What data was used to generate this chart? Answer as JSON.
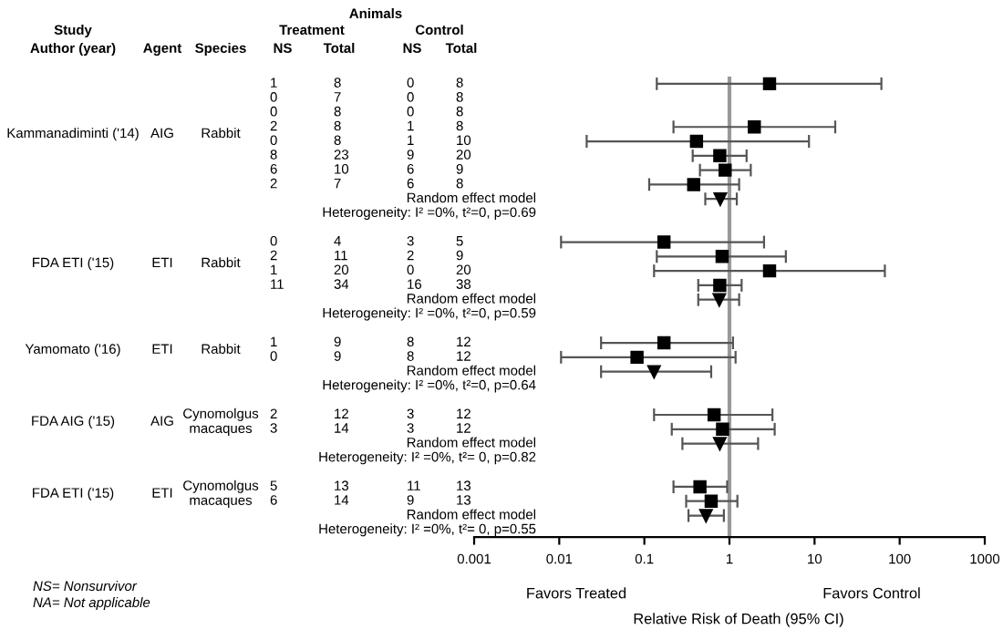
{
  "chart_data": {
    "type": "scatter",
    "orientation": "horizontal",
    "log": "x",
    "tick_labels": "x",
    "categories": [
      null,
      null,
      null,
      null,
      null,
      null,
      null,
      null,
      null,
      null,
      null,
      null,
      null,
      null,
      null,
      null,
      null,
      null,
      null,
      null,
      null,
      null,
      null,
      null,
      null,
      null,
      null,
      null,
      null,
      null,
      null,
      null
    ],
    "xlim": [
      0.001,
      1000
    ],
    "xticks": [
      {
        "value": 0.001,
        "label": "0.001"
      },
      {
        "value": 0.01,
        "label": "0.01"
      },
      {
        "value": 0.1,
        "label": "0.1"
      },
      1,
      10,
      100,
      1000
    ],
    "xlabel": "Relative Risk of Death (95% CI)",
    "ref_lines": [
      {
        "axis": "x",
        "value": 1,
        "color": "#999999"
      }
    ],
    "series": [
      {
        "marker": "square",
        "color": "#000000",
        "values": [
          2.96,
          null,
          null,
          1.96,
          0.41,
          0.77,
          0.89,
          0.38,
          null,
          null,
          null,
          0.17,
          0.82,
          2.96,
          0.77,
          null,
          null,
          null,
          0.17,
          0.082,
          null,
          null,
          null,
          0.66,
          0.83,
          null,
          null,
          null,
          0.45,
          0.61,
          null,
          null
        ],
        "errors": [
          [
            0.14,
            61
          ],
          null,
          null,
          [
            0.22,
            17.5
          ],
          [
            0.021,
            8.6
          ],
          [
            0.37,
            1.59
          ],
          [
            0.45,
            1.78
          ],
          [
            0.114,
            1.3
          ],
          null,
          null,
          null,
          [
            0.0105,
            2.55
          ],
          [
            0.14,
            4.6
          ],
          [
            0.13,
            67
          ],
          [
            0.43,
            1.39
          ],
          null,
          null,
          null,
          [
            0.031,
            1.1
          ],
          [
            0.0105,
            1.18
          ],
          null,
          null,
          null,
          [
            0.13,
            3.2
          ],
          [
            0.21,
            3.4
          ],
          null,
          null,
          null,
          [
            0.22,
            0.94
          ],
          [
            0.31,
            1.24
          ],
          null,
          null
        ]
      },
      {
        "marker": "triangle",
        "color": "#000000",
        "values": [
          null,
          null,
          null,
          null,
          null,
          null,
          null,
          null,
          0.78,
          null,
          null,
          null,
          null,
          null,
          null,
          0.76,
          null,
          null,
          null,
          null,
          0.13,
          null,
          null,
          null,
          null,
          0.77,
          null,
          null,
          null,
          null,
          0.53,
          null
        ],
        "errors": [
          null,
          null,
          null,
          null,
          null,
          null,
          null,
          null,
          [
            0.52,
            1.22
          ],
          null,
          null,
          null,
          null,
          null,
          null,
          [
            0.43,
            1.3
          ],
          null,
          null,
          null,
          null,
          [
            0.031,
            0.61
          ],
          null,
          null,
          null,
          null,
          [
            0.28,
            2.17
          ],
          null,
          null,
          null,
          null,
          [
            0.33,
            0.86
          ],
          null
        ]
      }
    ],
    "annotations": [
      "Animals",
      "Study",
      "Treatment",
      "Control",
      "Author (year)",
      "Agent",
      "Species",
      "NS",
      "Total",
      "NS",
      "Total",
      "Kammanadiminti ('14)",
      "AIG",
      "Rabbit",
      "1",
      "8",
      "0",
      "8",
      "0",
      "7",
      "0",
      "8",
      "0",
      "8",
      "0",
      "8",
      "2",
      "8",
      "1",
      "8",
      "0",
      "8",
      "1",
      "10",
      "8",
      "23",
      "9",
      "20",
      "6",
      "10",
      "6",
      "9",
      "2",
      "7",
      "6",
      "8",
      "Random effect model",
      "Heterogeneity: I² =0%, t²=0, p=0.69",
      "FDA ETI ('15)",
      "ETI",
      "Rabbit",
      "0",
      "4",
      "3",
      "5",
      "2",
      "11",
      "2",
      "9",
      "1",
      "20",
      "0",
      "20",
      "11",
      "34",
      "16",
      "38",
      "Random effect model",
      "Heterogeneity: I² =0%, t²=0, p=0.59",
      "Yamomato ('16)",
      "ETI",
      "Rabbit",
      "1",
      "9",
      "8",
      "12",
      "0",
      "9",
      "8",
      "12",
      "Random effect model",
      "Heterogeneity: I² =0%, t²=0, p=0.64",
      "FDA AIG ('15)",
      "AIG",
      "Cynomolgus\nmacaques",
      "2",
      "12",
      "3",
      "12",
      "3",
      "14",
      "3",
      "12",
      "Random effect model",
      "Heterogeneity: I² =0%, t²= 0, p=0.82",
      "FDA ETI ('15)",
      "ETI",
      "Cynomolgus\nmacaques",
      "5",
      "13",
      "11",
      "13",
      "6",
      "14",
      "9",
      "13",
      "Random effect model",
      "Heterogeneity: I² =0%, t²= 0, p=0.55",
      "Favors Treated",
      "Favors Control",
      "NS= Nonsurvivor",
      "NA= Not applicable"
    ]
  }
}
